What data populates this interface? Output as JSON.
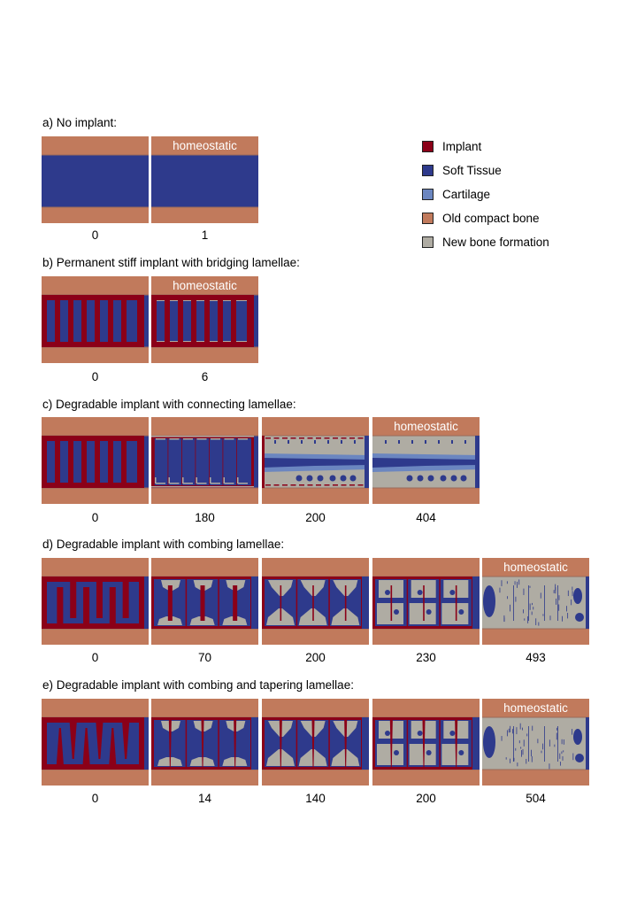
{
  "colors": {
    "implant": "#8b0018",
    "soft_tissue": "#2e3a8c",
    "cartilage": "#6b86c0",
    "old_bone": "#c17a5c",
    "new_bone": "#afaca3"
  },
  "legend": [
    {
      "label": "Implant",
      "color": "#8b0018"
    },
    {
      "label": "Soft Tissue",
      "color": "#2e3a8c"
    },
    {
      "label": "Cartilage",
      "color": "#6b86c0"
    },
    {
      "label": "Old compact bone",
      "color": "#c17a5c"
    },
    {
      "label": "New bone formation",
      "color": "#afaca3"
    }
  ],
  "homeostatic_label": "homeostatic",
  "rows": [
    {
      "title": "a) No implant:",
      "panels": [
        {
          "time": "0",
          "design": "none",
          "stage": "initial",
          "homeostatic": false
        },
        {
          "time": "1",
          "design": "none",
          "stage": "final",
          "homeostatic": true
        }
      ]
    },
    {
      "title": "b) Permanent stiff implant with bridging lamellae:",
      "panels": [
        {
          "time": "0",
          "design": "bridging",
          "stage": "initial",
          "homeostatic": false
        },
        {
          "time": "6",
          "design": "bridging",
          "stage": "final",
          "homeostatic": true
        }
      ]
    },
    {
      "title": "c) Degradable implant with connecting lamellae:",
      "panels": [
        {
          "time": "0",
          "design": "bridging",
          "stage": "initial",
          "homeostatic": false
        },
        {
          "time": "180",
          "design": "connecting",
          "stage": "degrading",
          "homeostatic": false
        },
        {
          "time": "200",
          "design": "connecting",
          "stage": "late",
          "homeostatic": false
        },
        {
          "time": "404",
          "design": "connecting",
          "stage": "final",
          "homeostatic": true
        }
      ]
    },
    {
      "title": "d) Degradable implant with combing lamellae:",
      "panels": [
        {
          "time": "0",
          "design": "combing",
          "stage": "initial",
          "homeostatic": false
        },
        {
          "time": "70",
          "design": "combing",
          "stage": "early",
          "homeostatic": false
        },
        {
          "time": "200",
          "design": "combing",
          "stage": "mid",
          "homeostatic": false
        },
        {
          "time": "230",
          "design": "combing",
          "stage": "late",
          "homeostatic": false
        },
        {
          "time": "493",
          "design": "combing",
          "stage": "final",
          "homeostatic": true
        }
      ]
    },
    {
      "title": "e) Degradable implant with combing and tapering lamellae:",
      "panels": [
        {
          "time": "0",
          "design": "tapering",
          "stage": "initial",
          "homeostatic": false
        },
        {
          "time": "14",
          "design": "tapering",
          "stage": "early",
          "homeostatic": false
        },
        {
          "time": "140",
          "design": "tapering",
          "stage": "mid",
          "homeostatic": false
        },
        {
          "time": "200",
          "design": "tapering",
          "stage": "late",
          "homeostatic": false
        },
        {
          "time": "504",
          "design": "tapering",
          "stage": "final",
          "homeostatic": true
        }
      ]
    }
  ]
}
